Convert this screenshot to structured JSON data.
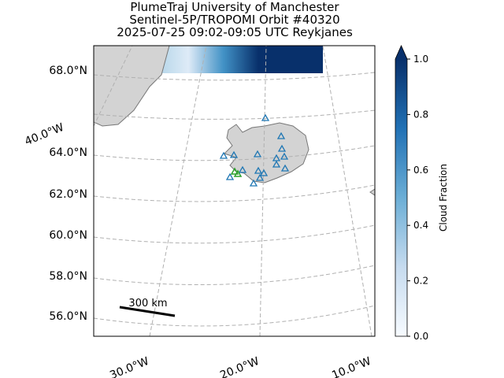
{
  "title": [
    "PlumeTraj    University of Manchester",
    "Sentinel-5P/TROPOMI Orbit #40320",
    "2025-07-25   09:02-09:05 UTC   Reykjanes"
  ],
  "map": {
    "lat_labels": [
      "68.0°N",
      "64.0°N",
      "62.0°N",
      "60.0°N",
      "58.0°N",
      "56.0°N"
    ],
    "lon_labels": [
      "40.0°W",
      "30.0°W",
      "20.0°W",
      "10.0°W"
    ],
    "scale_bar": "300 km"
  },
  "colorbar": {
    "label": "Cloud Fraction",
    "range": [
      0,
      1
    ],
    "ticks": [
      {
        "value": 0,
        "label": "0.0"
      },
      {
        "value": 0.2,
        "label": "0.2"
      },
      {
        "value": 0.4,
        "label": "0.4"
      },
      {
        "value": 0.6,
        "label": "0.6"
      },
      {
        "value": 0.8,
        "label": "0.8"
      },
      {
        "value": 1,
        "label": "1.0"
      }
    ]
  }
}
